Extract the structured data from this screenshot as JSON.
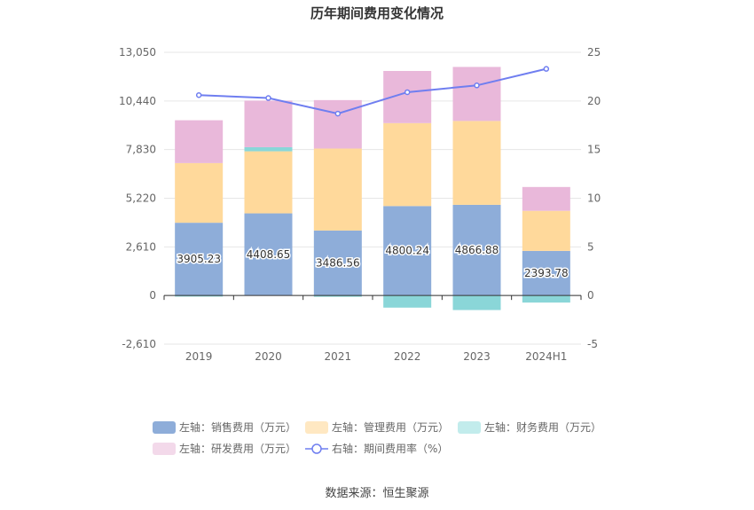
{
  "chart_data": {
    "type": "bar",
    "title": "历年期间费用变化情况",
    "categories": [
      "2019",
      "2020",
      "2021",
      "2022",
      "2023",
      "2024H1"
    ],
    "left_axis": {
      "min": -2610,
      "max": 13050,
      "ticks": [
        "-2,610",
        "0",
        "2,610",
        "5,220",
        "7,830",
        "10,440",
        "13,050"
      ]
    },
    "right_axis": {
      "min": -5,
      "max": 25,
      "ticks": [
        "-5",
        "0",
        "5",
        "10",
        "15",
        "20",
        "25"
      ]
    },
    "series": [
      {
        "name": "左轴：销售费用（万元）",
        "color": "#8eadd9",
        "values": [
          3905.23,
          4408.65,
          3486.56,
          4800.24,
          4866.88,
          2393.78
        ],
        "show_labels": true
      },
      {
        "name": "左轴：管理费用（万元）",
        "color": "#ffd99b",
        "values": [
          3200,
          3330,
          4400,
          4450,
          4500,
          2150
        ]
      },
      {
        "name": "左轴：财务费用（万元）",
        "color": "#8ad6d8",
        "values": [
          -60,
          220,
          -70,
          -650,
          -780,
          -380
        ]
      },
      {
        "name": "左轴：研发费用（万元）",
        "color": "#e9b8da",
        "values": [
          2300,
          2500,
          2600,
          2800,
          2900,
          1280
        ]
      },
      {
        "name": "右轴：期间费用率（%）",
        "type": "line",
        "color": "#6f7ef0",
        "values": [
          20.6,
          20.3,
          18.7,
          20.9,
          21.6,
          23.3
        ]
      }
    ],
    "legend_position": "bottom",
    "grid": true
  },
  "source_text": "数据来源：恒生聚源"
}
